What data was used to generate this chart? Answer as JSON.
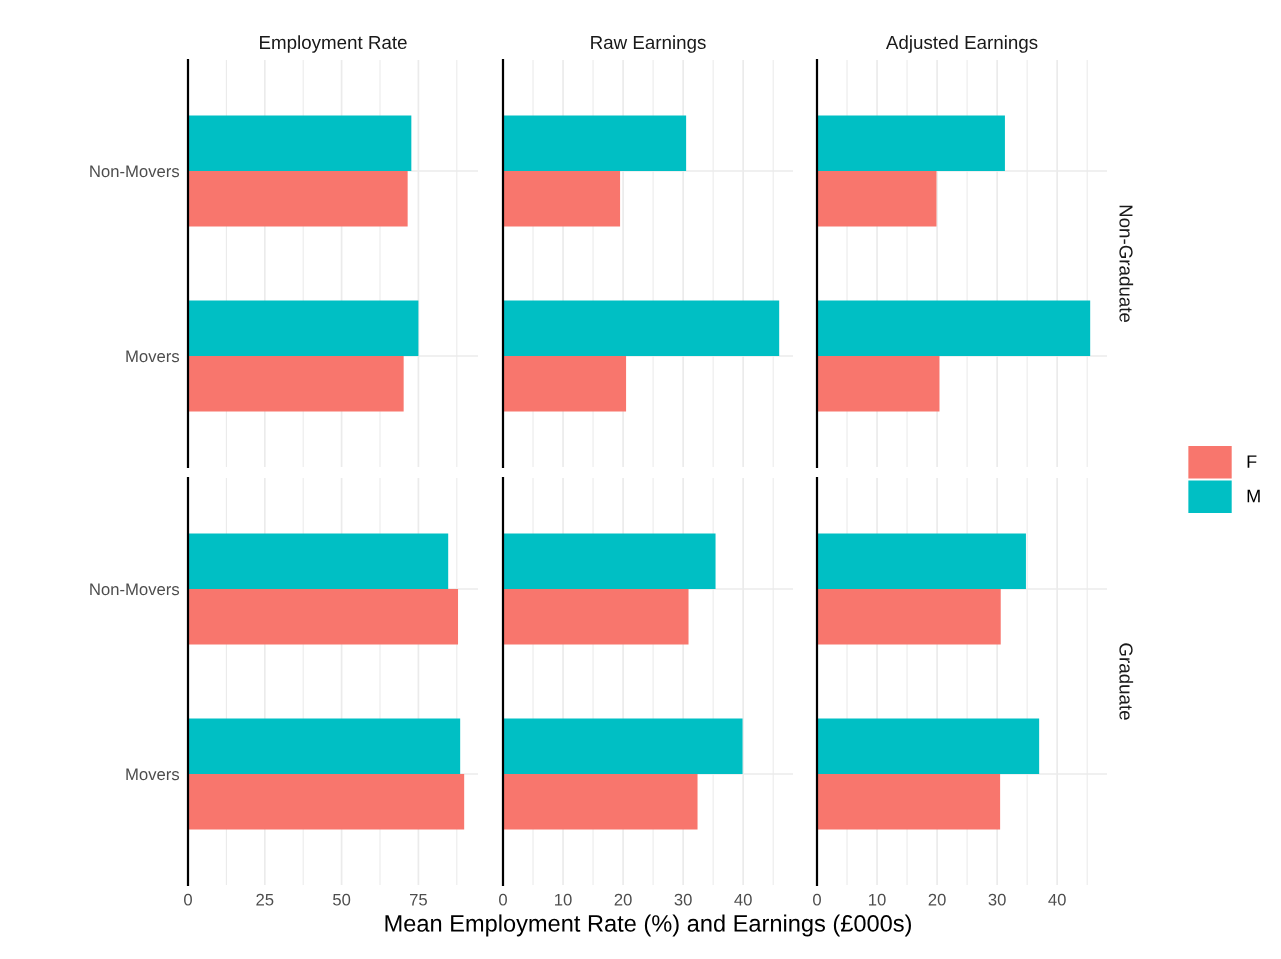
{
  "chart_data": [
    {
      "type": "bar",
      "orientation": "horizontal",
      "title": "Employment Rate",
      "categories": [
        "Non-Movers",
        "Movers"
      ],
      "xlim": [
        0,
        94.4
      ],
      "xticks": [
        0,
        25,
        50,
        75
      ],
      "grid": true,
      "tick_labels": "y",
      "legend": "right",
      "series": [
        {
          "name": "F",
          "color": "#f8766d",
          "values": [
            71.5,
            70.2
          ]
        },
        {
          "name": "M",
          "color": "#00bfc4",
          "values": [
            72.7,
            75.0
          ]
        }
      ]
    },
    {
      "type": "bar",
      "orientation": "horizontal",
      "title": "Raw Earnings",
      "categories": [
        null,
        null
      ],
      "xlim": [
        0,
        48.3
      ],
      "xticks": [
        0,
        10,
        20,
        30,
        40
      ],
      "grid": true,
      "tick_labels": false,
      "series": [
        {
          "color": "#f8766d",
          "values": [
            19.5,
            20.5
          ]
        },
        {
          "color": "#00bfc4",
          "values": [
            30.5,
            46.0
          ]
        }
      ]
    },
    {
      "type": "bar",
      "orientation": "horizontal",
      "title": "Adjusted Earnings",
      "categories": [
        null,
        null
      ],
      "xlim": [
        0,
        48.3
      ],
      "xticks": [
        0,
        10,
        20,
        30,
        40
      ],
      "grid": true,
      "tick_labels": false,
      "annotations": [
        "Non-Graduate"
      ],
      "series": [
        {
          "color": "#f8766d",
          "values": [
            19.9,
            20.4
          ]
        },
        {
          "color": "#00bfc4",
          "values": [
            31.3,
            45.5
          ]
        }
      ]
    },
    {
      "type": "bar",
      "orientation": "horizontal",
      "categories": [
        "Non-Movers",
        "Movers"
      ],
      "xlim": [
        0,
        94.4
      ],
      "xticks": [
        0,
        25,
        50,
        75
      ],
      "grid": true,
      "series": [
        {
          "color": "#f8766d",
          "values": [
            87.9,
            89.9
          ]
        },
        {
          "color": "#00bfc4",
          "values": [
            84.7,
            88.6
          ]
        }
      ]
    },
    {
      "type": "bar",
      "orientation": "horizontal",
      "xlabel": "Mean Employment Rate (%) and Earnings (£000s)",
      "categories": [
        null,
        null
      ],
      "xlim": [
        0,
        48.3
      ],
      "xticks": [
        0,
        10,
        20,
        30,
        40
      ],
      "grid": true,
      "tick_labels": "x",
      "series": [
        {
          "color": "#f8766d",
          "values": [
            30.9,
            32.4
          ]
        },
        {
          "color": "#00bfc4",
          "values": [
            35.4,
            39.9
          ]
        }
      ]
    },
    {
      "type": "bar",
      "orientation": "horizontal",
      "categories": [
        null,
        null
      ],
      "xlim": [
        0,
        48.3
      ],
      "xticks": [
        0,
        10,
        20,
        30,
        40
      ],
      "grid": true,
      "tick_labels": "x",
      "annotations": [
        "Graduate"
      ],
      "series": [
        {
          "color": "#f8766d",
          "values": [
            30.6,
            30.5
          ]
        },
        {
          "color": "#00bfc4",
          "values": [
            34.8,
            37.0
          ]
        }
      ]
    }
  ]
}
